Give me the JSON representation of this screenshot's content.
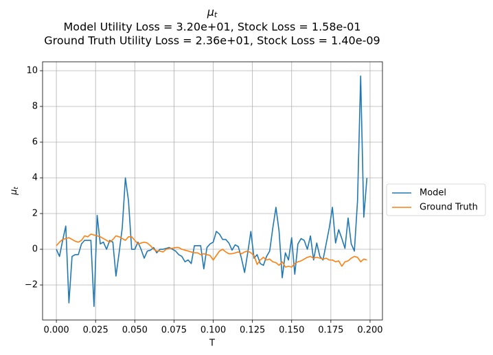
{
  "chart_data": {
    "type": "line",
    "title_symbol": "μ",
    "title_subscript": "t",
    "title_lines": [
      "Model Utility Loss = 3.20e+01, Stock Loss = 1.58e-01",
      "Ground Truth Utility Loss = 2.36e+01, Stock Loss = 1.40e-09"
    ],
    "xlabel": "T",
    "ylabel_symbol": "μ",
    "ylabel_subscript": "t",
    "x": [
      0,
      0.002,
      0.004,
      0.006,
      0.008,
      0.01,
      0.012,
      0.014,
      0.016,
      0.018,
      0.02,
      0.022,
      0.024,
      0.026,
      0.028,
      0.03,
      0.032,
      0.034,
      0.036,
      0.038,
      0.04,
      0.042,
      0.044,
      0.046,
      0.048,
      0.05,
      0.052,
      0.054,
      0.056,
      0.058,
      0.06,
      0.062,
      0.064,
      0.066,
      0.068,
      0.07,
      0.072,
      0.074,
      0.076,
      0.078,
      0.08,
      0.082,
      0.084,
      0.086,
      0.088,
      0.09,
      0.092,
      0.094,
      0.096,
      0.098,
      0.1,
      0.102,
      0.104,
      0.106,
      0.108,
      0.11,
      0.112,
      0.114,
      0.116,
      0.118,
      0.12,
      0.122,
      0.124,
      0.126,
      0.128,
      0.13,
      0.132,
      0.134,
      0.136,
      0.138,
      0.14,
      0.142,
      0.144,
      0.146,
      0.148,
      0.15,
      0.152,
      0.154,
      0.156,
      0.158,
      0.16,
      0.162,
      0.164,
      0.166,
      0.168,
      0.17,
      0.172,
      0.174,
      0.176,
      0.178,
      0.18,
      0.182,
      0.184,
      0.186,
      0.188,
      0.19,
      0.192,
      0.194,
      0.196,
      0.198
    ],
    "series": [
      {
        "name": "Model",
        "color": "#1f77b4",
        "values": [
          0,
          -0.4,
          0.5,
          1.3,
          -3.0,
          -0.4,
          -0.3,
          -0.3,
          0.3,
          0.5,
          0.5,
          0.5,
          -3.2,
          1.9,
          0.3,
          0.4,
          0,
          0.5,
          0.4,
          -1.5,
          -0.2,
          1.2,
          4.0,
          2.7,
          0,
          0,
          0.4,
          0,
          -0.5,
          -0.1,
          -0.05,
          0.1,
          -0.2,
          0,
          0,
          0.05,
          0.1,
          0,
          -0.1,
          -0.3,
          -0.4,
          -0.7,
          -0.6,
          -0.8,
          0.2,
          0.2,
          0.2,
          -1.1,
          0.1,
          0.3,
          0.4,
          1.0,
          0.85,
          0.55,
          0.55,
          0.35,
          -0.05,
          0.25,
          0.15,
          -0.5,
          -1.3,
          -0.2,
          1.0,
          -0.5,
          -0.3,
          -0.8,
          -0.9,
          -0.4,
          -0.1,
          1.2,
          2.35,
          1.0,
          -1.6,
          -0.2,
          -0.6,
          0.65,
          -1.4,
          0.3,
          0.6,
          0.5,
          0,
          0.75,
          -0.6,
          0.35,
          -0.4,
          -0.6,
          0.3,
          1.2,
          2.35,
          0.35,
          1.1,
          0.6,
          0.05,
          1.75,
          0.3,
          -0.1,
          2.7,
          9.7,
          1.8,
          4.0
        ]
      },
      {
        "name": "Ground Truth",
        "color": "#ff7f0e",
        "values": [
          0.2,
          0.4,
          0.55,
          0.6,
          0.65,
          0.55,
          0.45,
          0.4,
          0.5,
          0.75,
          0.7,
          0.85,
          0.8,
          0.75,
          0.7,
          0.6,
          0.5,
          0.4,
          0.55,
          0.75,
          0.7,
          0.6,
          0.5,
          0.7,
          0.7,
          0.5,
          0.3,
          0.35,
          0.4,
          0.35,
          0.2,
          0,
          -0.1,
          -0.1,
          -0.15,
          0,
          0.05,
          0.05,
          0.1,
          0.1,
          0,
          -0.05,
          -0.1,
          -0.15,
          -0.2,
          -0.2,
          -0.3,
          -0.25,
          -0.3,
          -0.35,
          -0.6,
          -0.35,
          -0.1,
          0,
          -0.15,
          -0.25,
          -0.25,
          -0.2,
          -0.15,
          -0.25,
          -0.15,
          -0.1,
          -0.2,
          -0.35,
          -0.85,
          -0.6,
          -0.45,
          -0.6,
          -0.55,
          -0.7,
          -0.75,
          -0.9,
          -0.7,
          -1.0,
          -0.95,
          -1.0,
          -0.8,
          -0.7,
          -0.65,
          -0.55,
          -0.45,
          -0.4,
          -0.5,
          -0.45,
          -0.5,
          -0.55,
          -0.5,
          -0.6,
          -0.6,
          -0.7,
          -0.65,
          -0.95,
          -0.7,
          -0.65,
          -0.5,
          -0.4,
          -0.45,
          -0.7,
          -0.55,
          -0.6
        ]
      }
    ],
    "xlim": [
      -0.0088,
      0.2079
    ],
    "ylim": [
      -3.96,
      10.5
    ],
    "xticks": [
      {
        "value": 0,
        "label": "0.000"
      },
      {
        "value": 0.025,
        "label": "0.025"
      },
      {
        "value": 0.05,
        "label": "0.050"
      },
      {
        "value": 0.075,
        "label": "0.075"
      },
      {
        "value": 0.1,
        "label": "0.100"
      },
      {
        "value": 0.125,
        "label": "0.125"
      },
      {
        "value": 0.15,
        "label": "0.150"
      },
      {
        "value": 0.175,
        "label": "0.175"
      },
      {
        "value": 0.2,
        "label": "0.200"
      }
    ],
    "yticks": [
      {
        "value": -2,
        "label": "−2"
      },
      0,
      2,
      4,
      6,
      8,
      10
    ],
    "grid": true,
    "legend": "outside right"
  }
}
